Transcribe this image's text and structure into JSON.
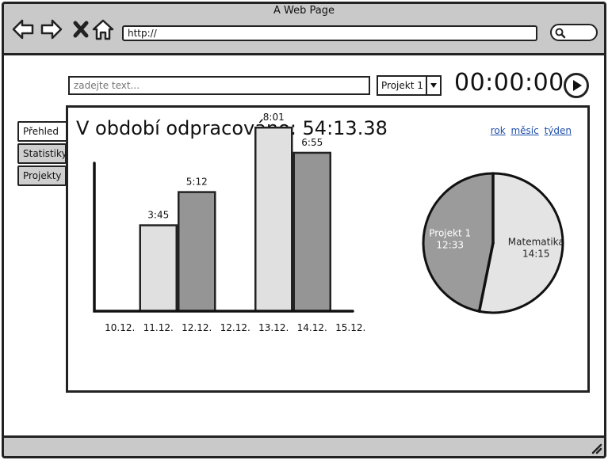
{
  "window": {
    "title": "A Web Page"
  },
  "browser": {
    "url": "http://"
  },
  "toolbar": {
    "input_placeholder": "zadejte text...",
    "project_selected": "Projekt 1",
    "timer": "00:00:00"
  },
  "tabs": [
    {
      "label": "Přehled",
      "active": true
    },
    {
      "label": "Statistiky",
      "active": false
    },
    {
      "label": "Projekty",
      "active": false
    }
  ],
  "heading": "V období odpracováno: 54:13.38",
  "period_links": [
    "rok",
    "měsíc",
    "týden"
  ],
  "chart_data": [
    {
      "type": "bar",
      "categories": [
        "10.12.",
        "11.12.",
        "12.12.",
        "12.12.",
        "13.12.",
        "14.12.",
        "15.12."
      ],
      "values": [
        null,
        225,
        312,
        null,
        481,
        415,
        null
      ],
      "labels": [
        "",
        "3:45",
        "5:12",
        "",
        "8:01",
        "6:55",
        ""
      ],
      "colors": [
        "#e0e0e0",
        "#e0e0e0",
        "#959595",
        "#e0e0e0",
        "#e0e0e0",
        "#959595",
        "#e0e0e0"
      ],
      "ylim": [
        0,
        500
      ]
    },
    {
      "type": "pie",
      "slices": [
        {
          "label": "Projekt 1",
          "value_label": "12:33",
          "value": 753,
          "color": "#9b9b9b",
          "text_color": "#ffffff"
        },
        {
          "label": "Matematika",
          "value_label": "14:15",
          "value": 855,
          "color": "#e4e4e4",
          "text_color": "#222222"
        }
      ]
    }
  ]
}
